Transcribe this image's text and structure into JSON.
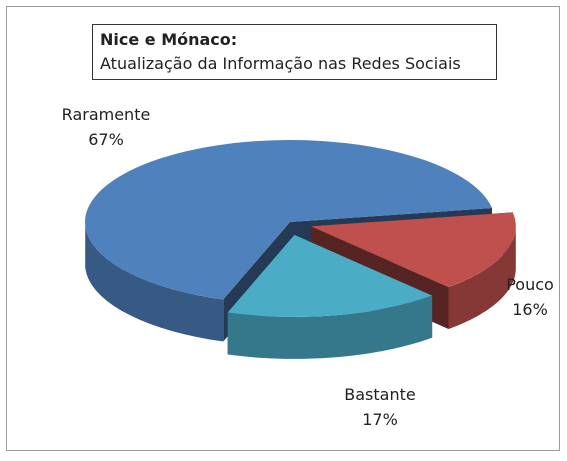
{
  "chart_data": {
    "type": "pie3d",
    "title": "Nice e Mónaco:",
    "subtitle": "Atualização da Informação nas Redes Sociais",
    "categories": [
      "Raramente",
      "Pouco",
      "Bastante"
    ],
    "values": [
      67,
      16,
      17
    ],
    "value_labels": [
      "67%",
      "16%",
      "17%"
    ],
    "colors": [
      "#4f81bd",
      "#c0504d",
      "#4bacc6"
    ]
  }
}
